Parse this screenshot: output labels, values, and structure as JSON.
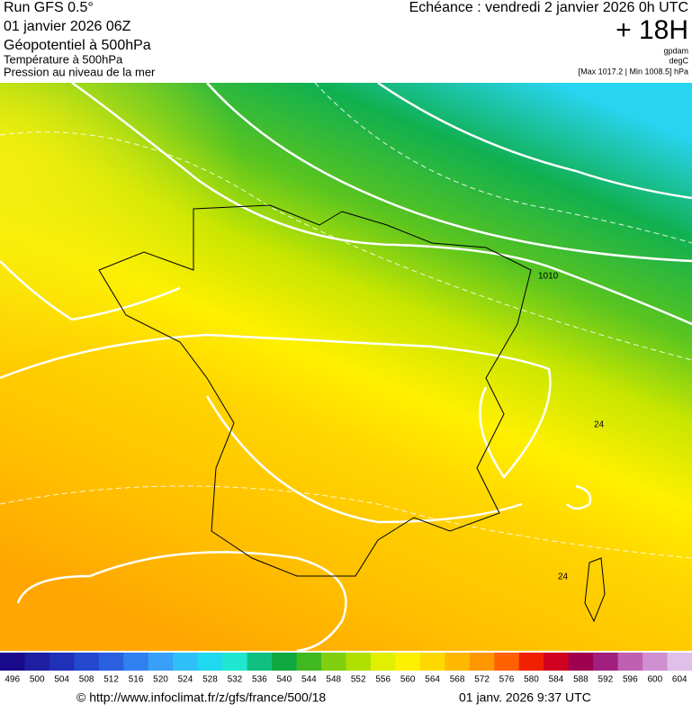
{
  "header": {
    "run": "Run GFS 0.5°",
    "date": "01 janvier 2026 06Z",
    "field_main": "Géopotentiel à 500hPa",
    "field_2": "Température à 500hPa",
    "field_3": "Pression au niveau de la mer",
    "echeance": "Echéance : vendredi 2 janvier 2026 0h UTC",
    "lead": "+ 18H",
    "unit_1": "gpdam",
    "unit_2": "degC",
    "pressure_range": "[Max 1017.2 | Min 1008.5] hPa"
  },
  "map": {
    "contour_labels": [
      "1010",
      "24",
      "24"
    ]
  },
  "legend": {
    "labels": [
      "496",
      "500",
      "504",
      "508",
      "512",
      "516",
      "520",
      "524",
      "528",
      "532",
      "536",
      "540",
      "544",
      "548",
      "552",
      "556",
      "560",
      "564",
      "568",
      "572",
      "576",
      "580",
      "584",
      "588",
      "592",
      "596",
      "600",
      "604"
    ],
    "colors": [
      "#1a0a8c",
      "#1e1ea0",
      "#2030b8",
      "#2448d0",
      "#2a60e0",
      "#3080f0",
      "#38a0f8",
      "#30c0f8",
      "#20d8f0",
      "#20e8d0",
      "#10c080",
      "#10a840",
      "#40b820",
      "#80d010",
      "#b0e000",
      "#e0f000",
      "#fff000",
      "#ffd800",
      "#ffb800",
      "#ff9800",
      "#ff6000",
      "#f02000",
      "#d00020",
      "#a00050",
      "#a02080",
      "#c060b0",
      "#d090d0",
      "#e0c0e8"
    ]
  },
  "footer": {
    "url": "© http://www.infoclimat.fr/z/gfs/france/500/18",
    "timestamp": "01 janv. 2026  9:37 UTC"
  }
}
